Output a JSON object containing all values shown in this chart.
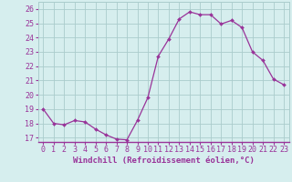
{
  "hours": [
    0,
    1,
    2,
    3,
    4,
    5,
    6,
    7,
    8,
    9,
    10,
    11,
    12,
    13,
    14,
    15,
    16,
    17,
    18,
    19,
    20,
    21,
    22,
    23
  ],
  "values": [
    19.0,
    18.0,
    17.9,
    18.2,
    18.1,
    17.6,
    17.2,
    16.9,
    16.85,
    18.2,
    19.8,
    22.7,
    23.9,
    25.3,
    25.8,
    25.6,
    25.6,
    24.95,
    25.2,
    24.7,
    23.0,
    22.4,
    21.1,
    20.7
  ],
  "line_color": "#993399",
  "marker": "D",
  "marker_size": 2.0,
  "bg_color": "#d6eeee",
  "grid_color": "#aacccc",
  "ylim": [
    16.7,
    26.5
  ],
  "yticks": [
    17,
    18,
    19,
    20,
    21,
    22,
    23,
    24,
    25,
    26
  ],
  "xlabel": "Windchill (Refroidissement éolien,°C)",
  "xlabel_fontsize": 6.5,
  "tick_fontsize": 6.0,
  "title_color": "#993399"
}
